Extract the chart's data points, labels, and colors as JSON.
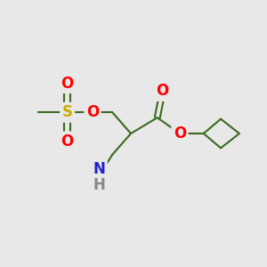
{
  "background_color": "#e8e8e8",
  "bond_color": "#3a6b20",
  "line_width": 1.5,
  "atom_colors": {
    "O": "#ff0000",
    "S": "#ccaa00",
    "N": "#2222cc",
    "H": "#888888",
    "C": "#3a6b20"
  },
  "font_size_large": 12,
  "font_size_medium": 10
}
